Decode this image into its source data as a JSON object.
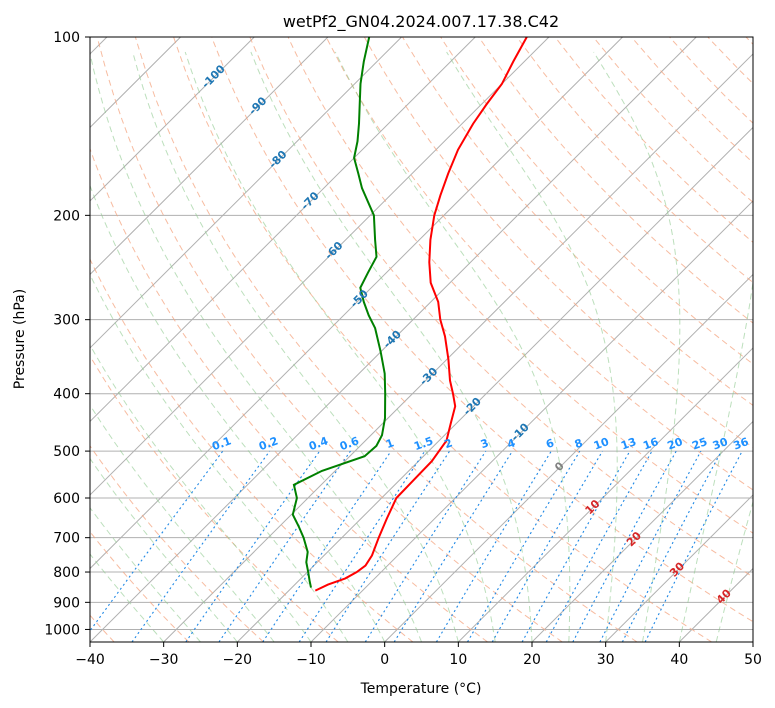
{
  "chart_data": {
    "type": "line",
    "title": "wetPf2_GN04.2024.007.17.38.C42",
    "xlabel": "Temperature (°C)",
    "ylabel": "Pressure (hPa)",
    "xlim": [
      -40,
      50
    ],
    "ylim": [
      1050,
      100
    ],
    "y_scale": "log",
    "skew": 35,
    "grid": true,
    "x_ticks": [
      "−40",
      "−30",
      "−20",
      "−10",
      "0",
      "10",
      "20",
      "30",
      "40",
      "50"
    ],
    "x_tick_values": [
      -40,
      -30,
      -20,
      -10,
      0,
      10,
      20,
      30,
      40,
      50
    ],
    "y_ticks": [
      "100",
      "200",
      "300",
      "400",
      "500",
      "600",
      "700",
      "800",
      "900",
      "1000"
    ],
    "y_tick_values": [
      100,
      200,
      300,
      400,
      500,
      600,
      700,
      800,
      900,
      1000
    ],
    "isotherm_labels": [
      {
        "text": "-100",
        "value": -100,
        "p": 116
      },
      {
        "text": "-90",
        "value": -90,
        "p": 130
      },
      {
        "text": "-80",
        "value": -80,
        "p": 160
      },
      {
        "text": "-70",
        "value": -70,
        "p": 188
      },
      {
        "text": "-60",
        "value": -60,
        "p": 228
      },
      {
        "text": "-50",
        "value": -50,
        "p": 275
      },
      {
        "text": "-40",
        "value": -40,
        "p": 322
      },
      {
        "text": "-30",
        "value": -30,
        "p": 372
      },
      {
        "text": "-20",
        "value": -20,
        "p": 418
      },
      {
        "text": "-10",
        "value": -10,
        "p": 462
      },
      {
        "text": "0",
        "value": 0,
        "p": 528
      },
      {
        "text": "10",
        "value": 10,
        "p": 618
      },
      {
        "text": "20",
        "value": 20,
        "p": 700
      },
      {
        "text": "30",
        "value": 30,
        "p": 788
      },
      {
        "text": "40",
        "value": 40,
        "p": 875
      }
    ],
    "mixing_ratio_labels": [
      "0.1",
      "0.2",
      "0.4",
      "0.6",
      "1",
      "1.5",
      "2",
      "3",
      "4",
      "6",
      "8",
      "10",
      "13",
      "16",
      "20",
      "25",
      "30",
      "36"
    ],
    "mixing_ratio_values": [
      0.1,
      0.2,
      0.4,
      0.6,
      1,
      1.5,
      2,
      3,
      4,
      6,
      8,
      10,
      13,
      16,
      20,
      25,
      30,
      36
    ],
    "series": [
      {
        "role": "temperature",
        "color": "#ff0000",
        "points": [
          [
            860,
            -16.4
          ],
          [
            840,
            -15.5
          ],
          [
            820,
            -14.0
          ],
          [
            800,
            -13.3
          ],
          [
            780,
            -13.0
          ],
          [
            750,
            -13.5
          ],
          [
            700,
            -15.0
          ],
          [
            650,
            -16.5
          ],
          [
            600,
            -18.0
          ],
          [
            560,
            -18.1
          ],
          [
            520,
            -18.2
          ],
          [
            480,
            -19.0
          ],
          [
            450,
            -20.7
          ],
          [
            420,
            -22.5
          ],
          [
            400,
            -24.5
          ],
          [
            380,
            -26.7
          ],
          [
            350,
            -29.8
          ],
          [
            320,
            -33.4
          ],
          [
            300,
            -36.3
          ],
          [
            280,
            -39.0
          ],
          [
            260,
            -42.6
          ],
          [
            240,
            -45.6
          ],
          [
            220,
            -48.5
          ],
          [
            200,
            -51.3
          ],
          [
            185,
            -53.2
          ],
          [
            170,
            -55.1
          ],
          [
            155,
            -57.0
          ],
          [
            140,
            -58.5
          ],
          [
            130,
            -59.3
          ],
          [
            120,
            -60.0
          ],
          [
            110,
            -61.5
          ],
          [
            100,
            -63.0
          ]
        ]
      },
      {
        "role": "dewpoint",
        "color": "#008000",
        "points": [
          [
            850,
            -17.4
          ],
          [
            830,
            -18.4
          ],
          [
            800,
            -19.9
          ],
          [
            770,
            -21.5
          ],
          [
            740,
            -22.7
          ],
          [
            700,
            -25.2
          ],
          [
            670,
            -27.4
          ],
          [
            640,
            -29.8
          ],
          [
            600,
            -31.5
          ],
          [
            570,
            -33.7
          ],
          [
            540,
            -31.8
          ],
          [
            510,
            -28.0
          ],
          [
            490,
            -27.8
          ],
          [
            470,
            -28.5
          ],
          [
            440,
            -30.4
          ],
          [
            400,
            -33.7
          ],
          [
            370,
            -36.5
          ],
          [
            340,
            -40.0
          ],
          [
            310,
            -44.0
          ],
          [
            295,
            -46.6
          ],
          [
            280,
            -49.1
          ],
          [
            265,
            -51.5
          ],
          [
            250,
            -52.5
          ],
          [
            235,
            -53.5
          ],
          [
            220,
            -56.0
          ],
          [
            200,
            -59.5
          ],
          [
            180,
            -64.8
          ],
          [
            170,
            -67.3
          ],
          [
            160,
            -70.0
          ],
          [
            150,
            -71.8
          ],
          [
            140,
            -74.0
          ],
          [
            130,
            -76.5
          ],
          [
            120,
            -79.2
          ],
          [
            110,
            -81.8
          ],
          [
            100,
            -84.4
          ]
        ]
      }
    ]
  }
}
